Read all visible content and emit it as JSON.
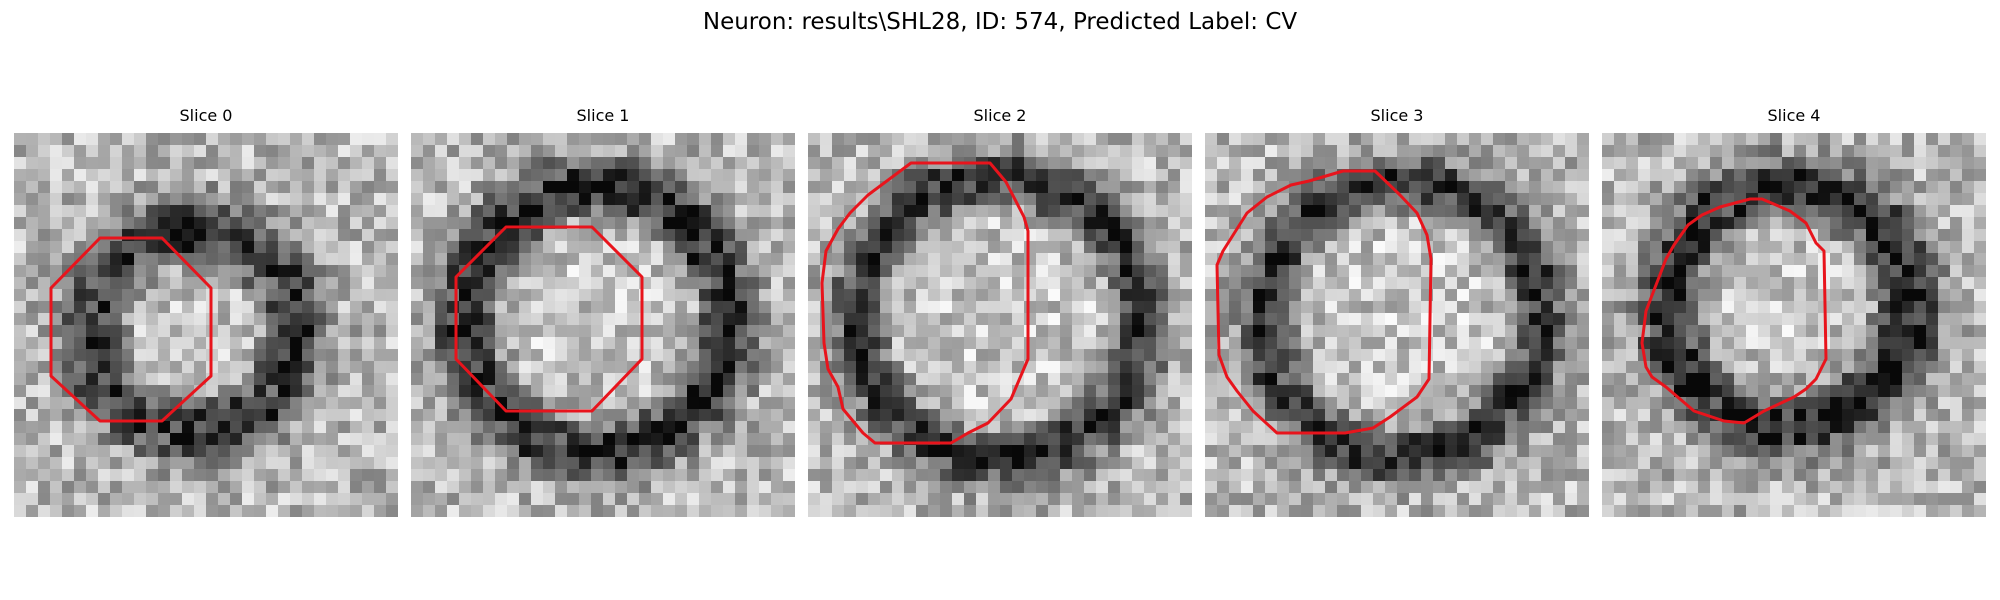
{
  "figure": {
    "title": "Neuron: results\\SHL28, ID: 574, Predicted Label: CV",
    "panels": [
      {
        "label": "Slice 0"
      },
      {
        "label": "Slice 1"
      },
      {
        "label": "Slice 2"
      },
      {
        "label": "Slice 3"
      },
      {
        "label": "Slice 4"
      }
    ]
  },
  "colors": {
    "contour": "#e8141c",
    "background": "#ffffff"
  }
}
